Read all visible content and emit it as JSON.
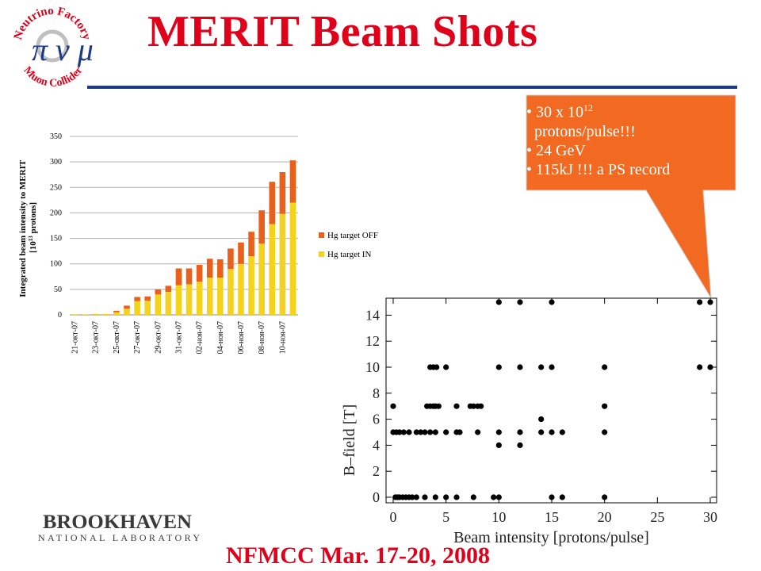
{
  "slide": {
    "title": "MERIT Beam Shots",
    "footer": "NFMCC Mar. 17-20, 2008",
    "logo": {
      "top_text": "Neutrino Factory",
      "bottom_text": "Muon Collider",
      "symbols": "π ν μ"
    },
    "bnl_logo": {
      "line1": "BROOKHAVEN",
      "line2": "NATIONAL LABORATORY"
    },
    "callout": {
      "line1_pre": "30 x 10",
      "line1_sup": "12",
      "line2": "protons/pulse!!!",
      "line3": "24 GeV",
      "line4": "115kJ !!! a PS record",
      "fill": "#f26a21"
    }
  },
  "chart_data": [
    {
      "type": "bar",
      "stacked": true,
      "ylabel": "Integrated beam intensity to MERIT [10^13 protons]",
      "ylabel_line1": "Integrated beam intensity to MERIT",
      "ylabel_line2_pre": "[10",
      "ylabel_line2_sup": "13",
      "ylabel_line2_post": " protons]",
      "ylim": [
        0,
        350
      ],
      "yticks": [
        "0",
        "50",
        "100",
        "150",
        "200",
        "250",
        "300",
        "350"
      ],
      "grid": true,
      "legend_position": "right",
      "xtick_labels": [
        "21-окт-07",
        "23-окт-07",
        "25-окт-07",
        "27-окт-07",
        "29-окт-07",
        "31-окт-07",
        "02-ноя-07",
        "04-ноя-07",
        "06-ноя-07",
        "08-ноя-07",
        "10-ноя-07"
      ],
      "categories": [
        "21-окт-07",
        "22-окт-07",
        "23-окт-07",
        "24-окт-07",
        "25-окт-07",
        "26-окт-07",
        "27-окт-07",
        "28-окт-07",
        "29-окт-07",
        "30-окт-07",
        "31-окт-07",
        "01-ноя-07",
        "02-ноя-07",
        "03-ноя-07",
        "04-ноя-07",
        "05-ноя-07",
        "06-ноя-07",
        "07-ноя-07",
        "08-ноя-07",
        "09-ноя-07",
        "10-ноя-07",
        "11-ноя-07"
      ],
      "series": [
        {
          "name": "Hg target IN",
          "color": "#f5d21c",
          "values": [
            1,
            1,
            2,
            2,
            5,
            12,
            27,
            28,
            40,
            45,
            58,
            60,
            65,
            73,
            73,
            90,
            100,
            115,
            140,
            178,
            198,
            220
          ]
        },
        {
          "name": "Hg target OFF",
          "color": "#e8601c",
          "values": [
            0,
            0,
            0,
            0,
            3,
            6,
            8,
            8,
            10,
            12,
            33,
            31,
            33,
            37,
            36,
            40,
            42,
            48,
            65,
            83,
            82,
            83
          ]
        }
      ]
    },
    {
      "type": "scatter",
      "xlabel": "Beam intensity [protons/pulse]",
      "ylabel": "B–field [T]",
      "xlim": [
        0,
        30
      ],
      "ylim": [
        0,
        15
      ],
      "xticks": [
        "0",
        "5",
        "10",
        "15",
        "20",
        "25",
        "30"
      ],
      "yticks": [
        "0",
        "2",
        "4",
        "6",
        "8",
        "10",
        "12",
        "14"
      ],
      "grid": false,
      "points": [
        [
          0,
          7
        ],
        [
          0,
          5
        ],
        [
          0.3,
          5
        ],
        [
          0.6,
          5
        ],
        [
          1.0,
          5
        ],
        [
          1.5,
          5
        ],
        [
          2.2,
          5
        ],
        [
          2.6,
          5
        ],
        [
          3.0,
          5
        ],
        [
          3.5,
          5
        ],
        [
          4.0,
          5
        ],
        [
          5.0,
          5
        ],
        [
          6.0,
          5
        ],
        [
          6.3,
          5
        ],
        [
          8.0,
          5
        ],
        [
          10.0,
          5
        ],
        [
          12.0,
          5
        ],
        [
          14.0,
          5
        ],
        [
          15.0,
          5
        ],
        [
          16.0,
          5
        ],
        [
          20.0,
          5
        ],
        [
          0.2,
          0
        ],
        [
          0.4,
          0
        ],
        [
          0.6,
          0
        ],
        [
          0.9,
          0
        ],
        [
          1.2,
          0
        ],
        [
          1.5,
          0
        ],
        [
          1.8,
          0
        ],
        [
          2.2,
          0
        ],
        [
          3.0,
          0
        ],
        [
          4.0,
          0
        ],
        [
          5.0,
          0
        ],
        [
          6.0,
          0
        ],
        [
          7.6,
          0
        ],
        [
          9.5,
          0
        ],
        [
          10.0,
          0
        ],
        [
          15.0,
          0
        ],
        [
          16.0,
          0
        ],
        [
          20.0,
          0
        ],
        [
          3.2,
          7
        ],
        [
          3.5,
          7
        ],
        [
          3.8,
          7
        ],
        [
          4.0,
          7
        ],
        [
          4.3,
          7
        ],
        [
          6.0,
          7
        ],
        [
          7.3,
          7
        ],
        [
          7.6,
          7
        ],
        [
          8.0,
          7
        ],
        [
          8.3,
          7
        ],
        [
          20.0,
          7
        ],
        [
          3.5,
          10
        ],
        [
          3.8,
          10
        ],
        [
          4.1,
          10
        ],
        [
          5.0,
          10
        ],
        [
          10.0,
          10
        ],
        [
          12.0,
          10
        ],
        [
          14.0,
          10
        ],
        [
          15.0,
          10
        ],
        [
          20.0,
          10
        ],
        [
          29.0,
          10
        ],
        [
          30.0,
          10
        ],
        [
          10.0,
          15
        ],
        [
          12.0,
          15
        ],
        [
          15.0,
          15
        ],
        [
          29.0,
          15
        ],
        [
          30.0,
          15
        ],
        [
          10.0,
          4
        ],
        [
          12.0,
          4
        ],
        [
          14.0,
          6
        ]
      ]
    }
  ]
}
